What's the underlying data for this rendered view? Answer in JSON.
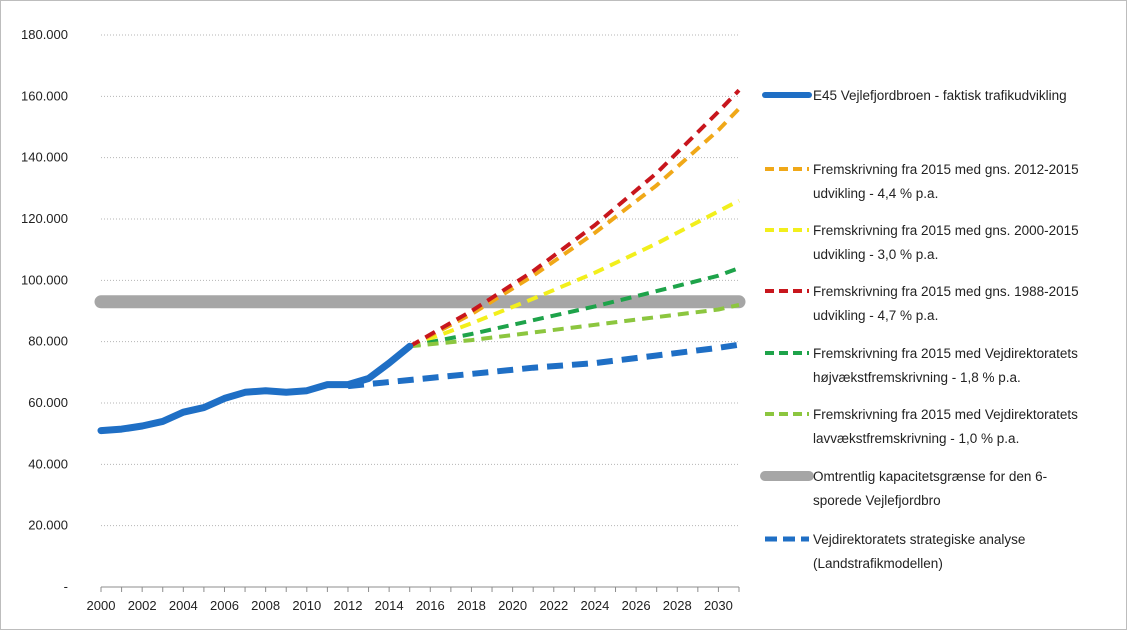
{
  "chart_data": {
    "type": "line",
    "title": "",
    "xlabel": "",
    "ylabel": "",
    "xlim": [
      2000,
      2031
    ],
    "ylim": [
      0,
      180000
    ],
    "y_ticks": [
      "-",
      "20.000",
      "40.000",
      "60.000",
      "80.000",
      "100.000",
      "120.000",
      "140.000",
      "160.000",
      "180.000"
    ],
    "x_ticks": [
      "2000",
      "2002",
      "2004",
      "2006",
      "2008",
      "2010",
      "2012",
      "2014",
      "2016",
      "2018",
      "2020",
      "2022",
      "2024",
      "2026",
      "2028",
      "2030"
    ],
    "grid": "horizontal dotted",
    "legend_position": "right",
    "series": [
      {
        "name": "E45 Vejlefjordbroen - faktisk trafikudvikling",
        "color": "#1f6fc5",
        "style": "solid",
        "x": [
          2000,
          2001,
          2002,
          2003,
          2004,
          2005,
          2006,
          2007,
          2008,
          2009,
          2010,
          2011,
          2012,
          2013,
          2014,
          2015
        ],
        "y": [
          51000,
          51500,
          52500,
          54000,
          57000,
          58500,
          61500,
          63500,
          64000,
          63500,
          64000,
          66000,
          66000,
          68000,
          73000,
          78500
        ]
      },
      {
        "name": "Fremskrivning fra 2015 med gns. 2012-2015 udvikling - 4,4 % p.a.",
        "color": "#f0a818",
        "style": "dashed",
        "x": [
          2015,
          2018,
          2021,
          2024,
          2027,
          2030,
          2031
        ],
        "y": [
          78500,
          89000,
          101500,
          115500,
          131000,
          149000,
          156000
        ]
      },
      {
        "name": "Fremskrivning fra 2015 med gns. 2000-2015 udvikling - 3,0 % p.a.",
        "color": "#f2ef1c",
        "style": "dashed",
        "x": [
          2015,
          2018,
          2021,
          2024,
          2027,
          2030,
          2031
        ],
        "y": [
          78500,
          86000,
          94000,
          102500,
          112000,
          122500,
          126000
        ]
      },
      {
        "name": "Fremskrivning fra 2015 med gns. 1988-2015 udvikling - 4,7 % p.a.",
        "color": "#c8161d",
        "style": "dashed",
        "x": [
          2015,
          2018,
          2021,
          2024,
          2027,
          2030,
          2031
        ],
        "y": [
          78500,
          90000,
          103000,
          118000,
          135000,
          155000,
          162000
        ]
      },
      {
        "name": "Fremskrivning fra 2015 med Vejdirektoratets højvækstfremskrivning - 1,8 % p.a.",
        "color": "#1ea34a",
        "style": "dashed",
        "x": [
          2015,
          2018,
          2021,
          2024,
          2027,
          2030,
          2031
        ],
        "y": [
          78500,
          82500,
          87000,
          91500,
          96500,
          101500,
          104000
        ]
      },
      {
        "name": "Fremskrivning fra 2015 med Vejdirektoratets lavvækstfremskrivning - 1,0 % p.a.",
        "color": "#8cc63f",
        "style": "dashed",
        "x": [
          2015,
          2018,
          2021,
          2024,
          2027,
          2030,
          2031
        ],
        "y": [
          78500,
          80500,
          83000,
          85500,
          88000,
          90500,
          92000
        ]
      },
      {
        "name": "Omtrentlig kapacitetsgrænse for den 6-sporede Vejlefjordbro",
        "color": "#a6a6a6",
        "style": "solid-thick",
        "x": [
          2000,
          2031
        ],
        "y": [
          93000,
          93000
        ]
      },
      {
        "name": "Vejdirektoratets strategiske analyse (Landstrafikmodellen)",
        "color": "#1f6fc5",
        "style": "dashed",
        "x": [
          2012,
          2015,
          2018,
          2021,
          2024,
          2027,
          2030,
          2031
        ],
        "y": [
          65500,
          67500,
          69500,
          71500,
          73000,
          75500,
          78000,
          79000
        ]
      }
    ]
  },
  "legend": [
    {
      "line1": "E45 Vejlefjordbroen - faktisk trafikudvikling",
      "line2": ""
    },
    {
      "line1": "Fremskrivning fra 2015 med gns. 2012-2015",
      "line2": "udvikling - 4,4 % p.a."
    },
    {
      "line1": "Fremskrivning fra 2015 med gns. 2000-2015",
      "line2": "udvikling - 3,0 % p.a."
    },
    {
      "line1": "Fremskrivning fra 2015 med gns. 1988-2015",
      "line2": "udvikling - 4,7 % p.a."
    },
    {
      "line1": "Fremskrivning fra 2015 med Vejdirektoratets",
      "line2": "højvækstfremskrivning - 1,8 % p.a."
    },
    {
      "line1": "Fremskrivning fra 2015 med Vejdirektoratets",
      "line2": "lavvækstfremskrivning - 1,0 % p.a."
    },
    {
      "line1": "Omtrentlig kapacitetsgrænse for den 6-",
      "line2": "sporede Vejlefjordbro"
    },
    {
      "line1": "Vejdirektoratets strategiske analyse",
      "line2": "(Landstrafikmodellen)"
    }
  ]
}
